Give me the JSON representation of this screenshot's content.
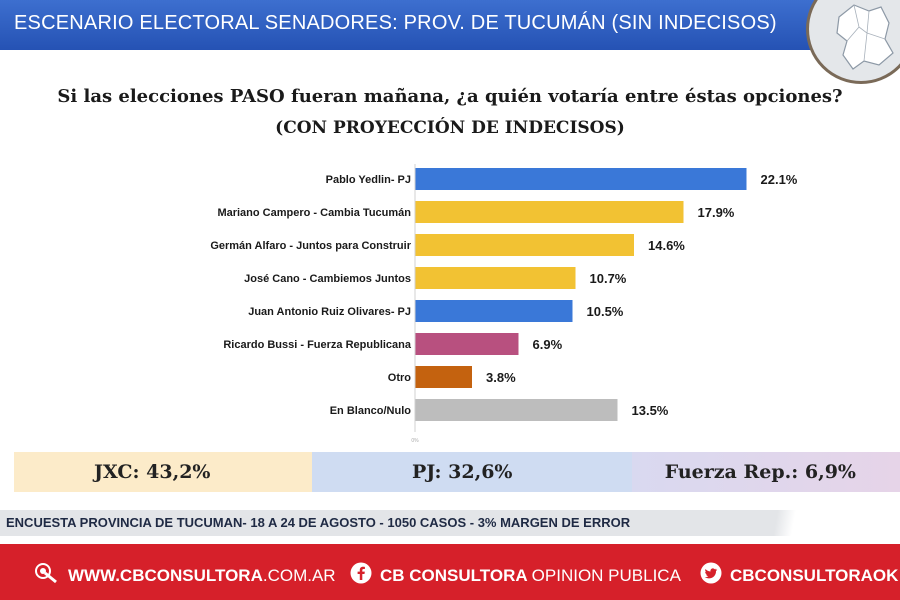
{
  "header": {
    "title": "ESCENARIO ELECTORAL SENADORES: PROV. DE TUCUMÁN (SIN INDECISOS)"
  },
  "chart_data": {
    "type": "bar",
    "orientation": "horizontal",
    "title": "Si las elecciones PASO fueran mañana, ¿a quién votaría entre éstas opciones?",
    "subtitle": "(CON PROYECCIÓN DE INDECISOS)",
    "xlabel": "",
    "ylabel": "",
    "xlim": [
      0,
      25
    ],
    "categories": [
      "Pablo Yedlin- PJ",
      "Mariano Campero - Cambia Tucumán",
      "Germán Alfaro - Juntos para Construir",
      "José Cano - Cambiemos Juntos",
      "Juan Antonio Ruiz Olivares- PJ",
      "Ricardo Bussi - Fuerza Republicana",
      "Otro",
      "En Blanco/Nulo"
    ],
    "values": [
      22.1,
      17.9,
      14.6,
      10.7,
      10.5,
      6.9,
      3.8,
      13.5
    ],
    "labels": [
      "22.1%",
      "17.9%",
      "14.6%",
      "10.7%",
      "10.5%",
      "6.9%",
      "3.8%",
      "13.5%"
    ],
    "colors": [
      "#3a78d8",
      "#f2c233",
      "#f2c233",
      "#f2c233",
      "#3a78d8",
      "#b8507f",
      "#c4620f",
      "#bdbdbd"
    ],
    "axis_tick": "0%"
  },
  "summary": {
    "jxc": "JXC: 43,2%",
    "pj": "PJ: 32,6%",
    "fr": "Fuerza Rep.: 6,9%"
  },
  "footnote": "ENCUESTA PROVINCIA DE TUCUMAN- 18 A 24 DE AGOSTO - 1050 CASOS - 3% MARGEN DE ERROR",
  "footer": {
    "web_bold": "WWW.CBCONSULTORA",
    "web_light": ".COM.AR",
    "facebook_bold": "CB CONSULTORA",
    "facebook_light": "OPINION PUBLICA",
    "twitter": "CBCONSULTORAOK"
  }
}
